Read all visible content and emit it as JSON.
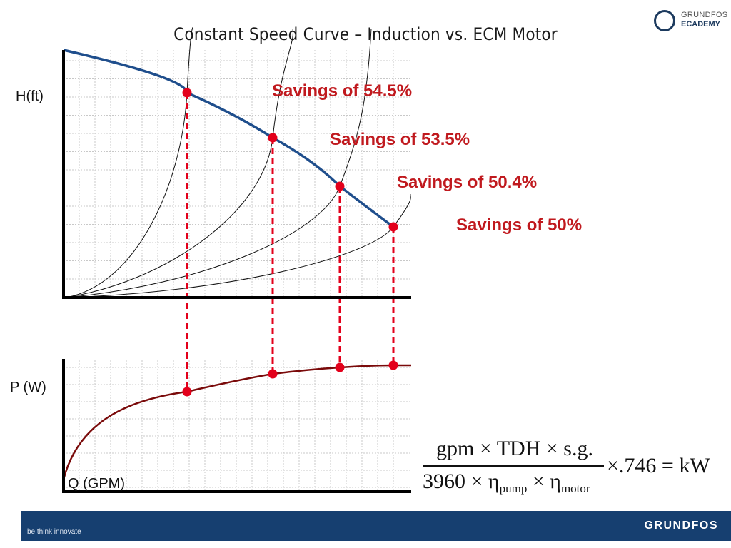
{
  "slide": {
    "title": "Constant Speed Curve – Induction vs. ECM Motor",
    "head_axis_label": "H(ft)",
    "power_axis_label": "P (W)",
    "flow_axis_label": "Q (GPM)",
    "savings": [
      "Savings of 54.5%",
      "Savings of 53.5%",
      "Savings of 50.4%",
      "Savings of 50%"
    ]
  },
  "logo": {
    "line1": "GRUNDFOS",
    "line2": "ECADEMY"
  },
  "formula": {
    "numerator": "gpm × TDH × s.g.",
    "denominator_prefix": "3960 × η",
    "pump_sub": "pump",
    "times": " × η",
    "motor_sub": "motor",
    "tail": "×.746 = kW"
  },
  "footer": {
    "tagline": "be think innovate",
    "brand": "GRUNDFOS"
  },
  "colors": {
    "pump_curve": "#1f4e8c",
    "power_curve": "#7a0a0a",
    "operating_points": "#e3001b",
    "savings_text": "#c0191e",
    "footer_bg": "#163f70"
  }
}
